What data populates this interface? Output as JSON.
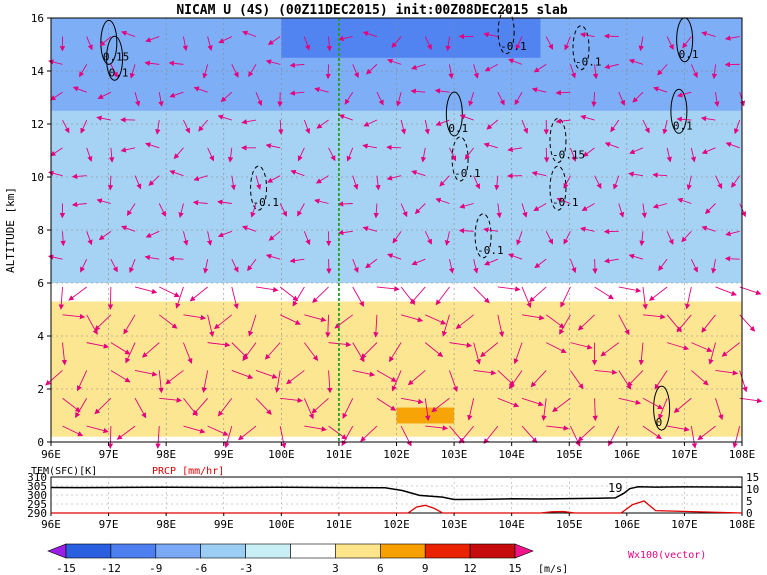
{
  "chart_data": [
    {
      "type": "heatmap",
      "title": "NICAM U (4S) (00Z11DEC2015) init:00Z08DEC2015 slab",
      "ylabel": "ALTITUDE [km]",
      "xlabel": "",
      "x_ticks": [
        "96E",
        "97E",
        "98E",
        "99E",
        "100E",
        "101E",
        "102E",
        "103E",
        "104E",
        "105E",
        "106E",
        "107E",
        "108E"
      ],
      "y_ticks": [
        "0",
        "2",
        "4",
        "6",
        "8",
        "10",
        "12",
        "14",
        "16"
      ],
      "xlim": [
        96,
        108
      ],
      "ylim": [
        0,
        16
      ],
      "grid": true,
      "marker_line_x": 101,
      "contour_labels": [
        {
          "text": "0.15",
          "x": 96.9,
          "y": 14.4
        },
        {
          "text": "0.1",
          "x": 97.0,
          "y": 13.8
        },
        {
          "text": "-0.1",
          "x": 103.8,
          "y": 14.8
        },
        {
          "text": "-0.1",
          "x": 105.1,
          "y": 14.2
        },
        {
          "text": "0.1",
          "x": 106.9,
          "y": 14.5
        },
        {
          "text": "0.1",
          "x": 102.9,
          "y": 11.7
        },
        {
          "text": "0.1",
          "x": 106.8,
          "y": 11.8
        },
        {
          "text": "-0.15",
          "x": 104.7,
          "y": 10.7
        },
        {
          "text": "-0.1",
          "x": 103.0,
          "y": 10.0
        },
        {
          "text": "-0.1",
          "x": 99.5,
          "y": 8.9
        },
        {
          "text": "-0.1",
          "x": 104.7,
          "y": 8.9
        },
        {
          "text": "-0.1",
          "x": 103.4,
          "y": 7.1
        },
        {
          "text": "0",
          "x": 106.5,
          "y": 0.6
        }
      ],
      "regions": [
        {
          "level": -3,
          "x": [
            96,
            108
          ],
          "y": [
            6.0,
            16.0
          ]
        },
        {
          "level": -6,
          "x": [
            96,
            108
          ],
          "y": [
            12.5,
            16.0
          ]
        },
        {
          "level": -9,
          "x": [
            100,
            104.5
          ],
          "y": [
            14.5,
            16.0
          ]
        },
        {
          "level": 3,
          "x": [
            96,
            108
          ],
          "y": [
            0.2,
            5.3
          ]
        },
        {
          "level": 6,
          "x": [
            102,
            103
          ],
          "y": [
            0.7,
            1.3
          ]
        }
      ]
    },
    {
      "type": "line",
      "label_left": "TEM(SFC)[K]",
      "label_right": "PRCP [mm/hr]",
      "y_ticks_left": [
        "290",
        "295",
        "300",
        "305",
        "310"
      ],
      "y_ticks_right": [
        "0",
        "5",
        "10",
        "15"
      ],
      "x_ticks": [
        "96E",
        "97E",
        "98E",
        "99E",
        "100E",
        "101E",
        "102E",
        "103E",
        "104E",
        "105E",
        "106E",
        "107E",
        "108E"
      ],
      "ylim_left": [
        290,
        310
      ],
      "ylim_right": [
        0,
        15
      ],
      "annotation": "19",
      "series": [
        {
          "name": "TEM(SFC)",
          "color": "#000000",
          "x": [
            96,
            96.5,
            97,
            98,
            99,
            100,
            101,
            101.8,
            102.1,
            102.4,
            102.8,
            103,
            103.5,
            104,
            104.5,
            105,
            105.5,
            105.8,
            105.95,
            106.05,
            106.2,
            106.5,
            107,
            108
          ],
          "y": [
            304.2,
            304.1,
            304.2,
            304.3,
            304.2,
            304.3,
            304.1,
            304.0,
            302.5,
            299.8,
            298.8,
            297.5,
            297.6,
            297.9,
            297.8,
            298.0,
            298.2,
            298.4,
            301.0,
            303.5,
            304.6,
            304.4,
            304.5,
            304.4
          ]
        },
        {
          "name": "PRCP",
          "color": "#e00000",
          "x": [
            96,
            102.2,
            102.35,
            102.5,
            102.65,
            102.8,
            104.5,
            104.7,
            104.9,
            105.1,
            105.9,
            106.1,
            106.3,
            106.5,
            108
          ],
          "y": [
            0,
            0,
            2.5,
            3.2,
            2.0,
            0,
            0,
            0.5,
            0.6,
            0,
            0,
            3.5,
            5.0,
            1.0,
            0
          ]
        }
      ]
    }
  ],
  "colorbar": {
    "ticks": [
      "-15",
      "-12",
      "-9",
      "-6",
      "-3",
      "3",
      "6",
      "9",
      "12",
      "15"
    ],
    "unit": "[m/s]",
    "colors": [
      "#9b1fe6",
      "#2a5fe0",
      "#4d7ff0",
      "#7aaaf5",
      "#9ccdf2",
      "#c8eef6",
      "#ffffff",
      "#fde58c",
      "#f7a000",
      "#ea2200",
      "#c50b0b",
      "#f0148a"
    ]
  },
  "vector_legend": "Wx100(vector)",
  "colors": {
    "vector": "#e6007e",
    "marker_line": "#22a022"
  }
}
